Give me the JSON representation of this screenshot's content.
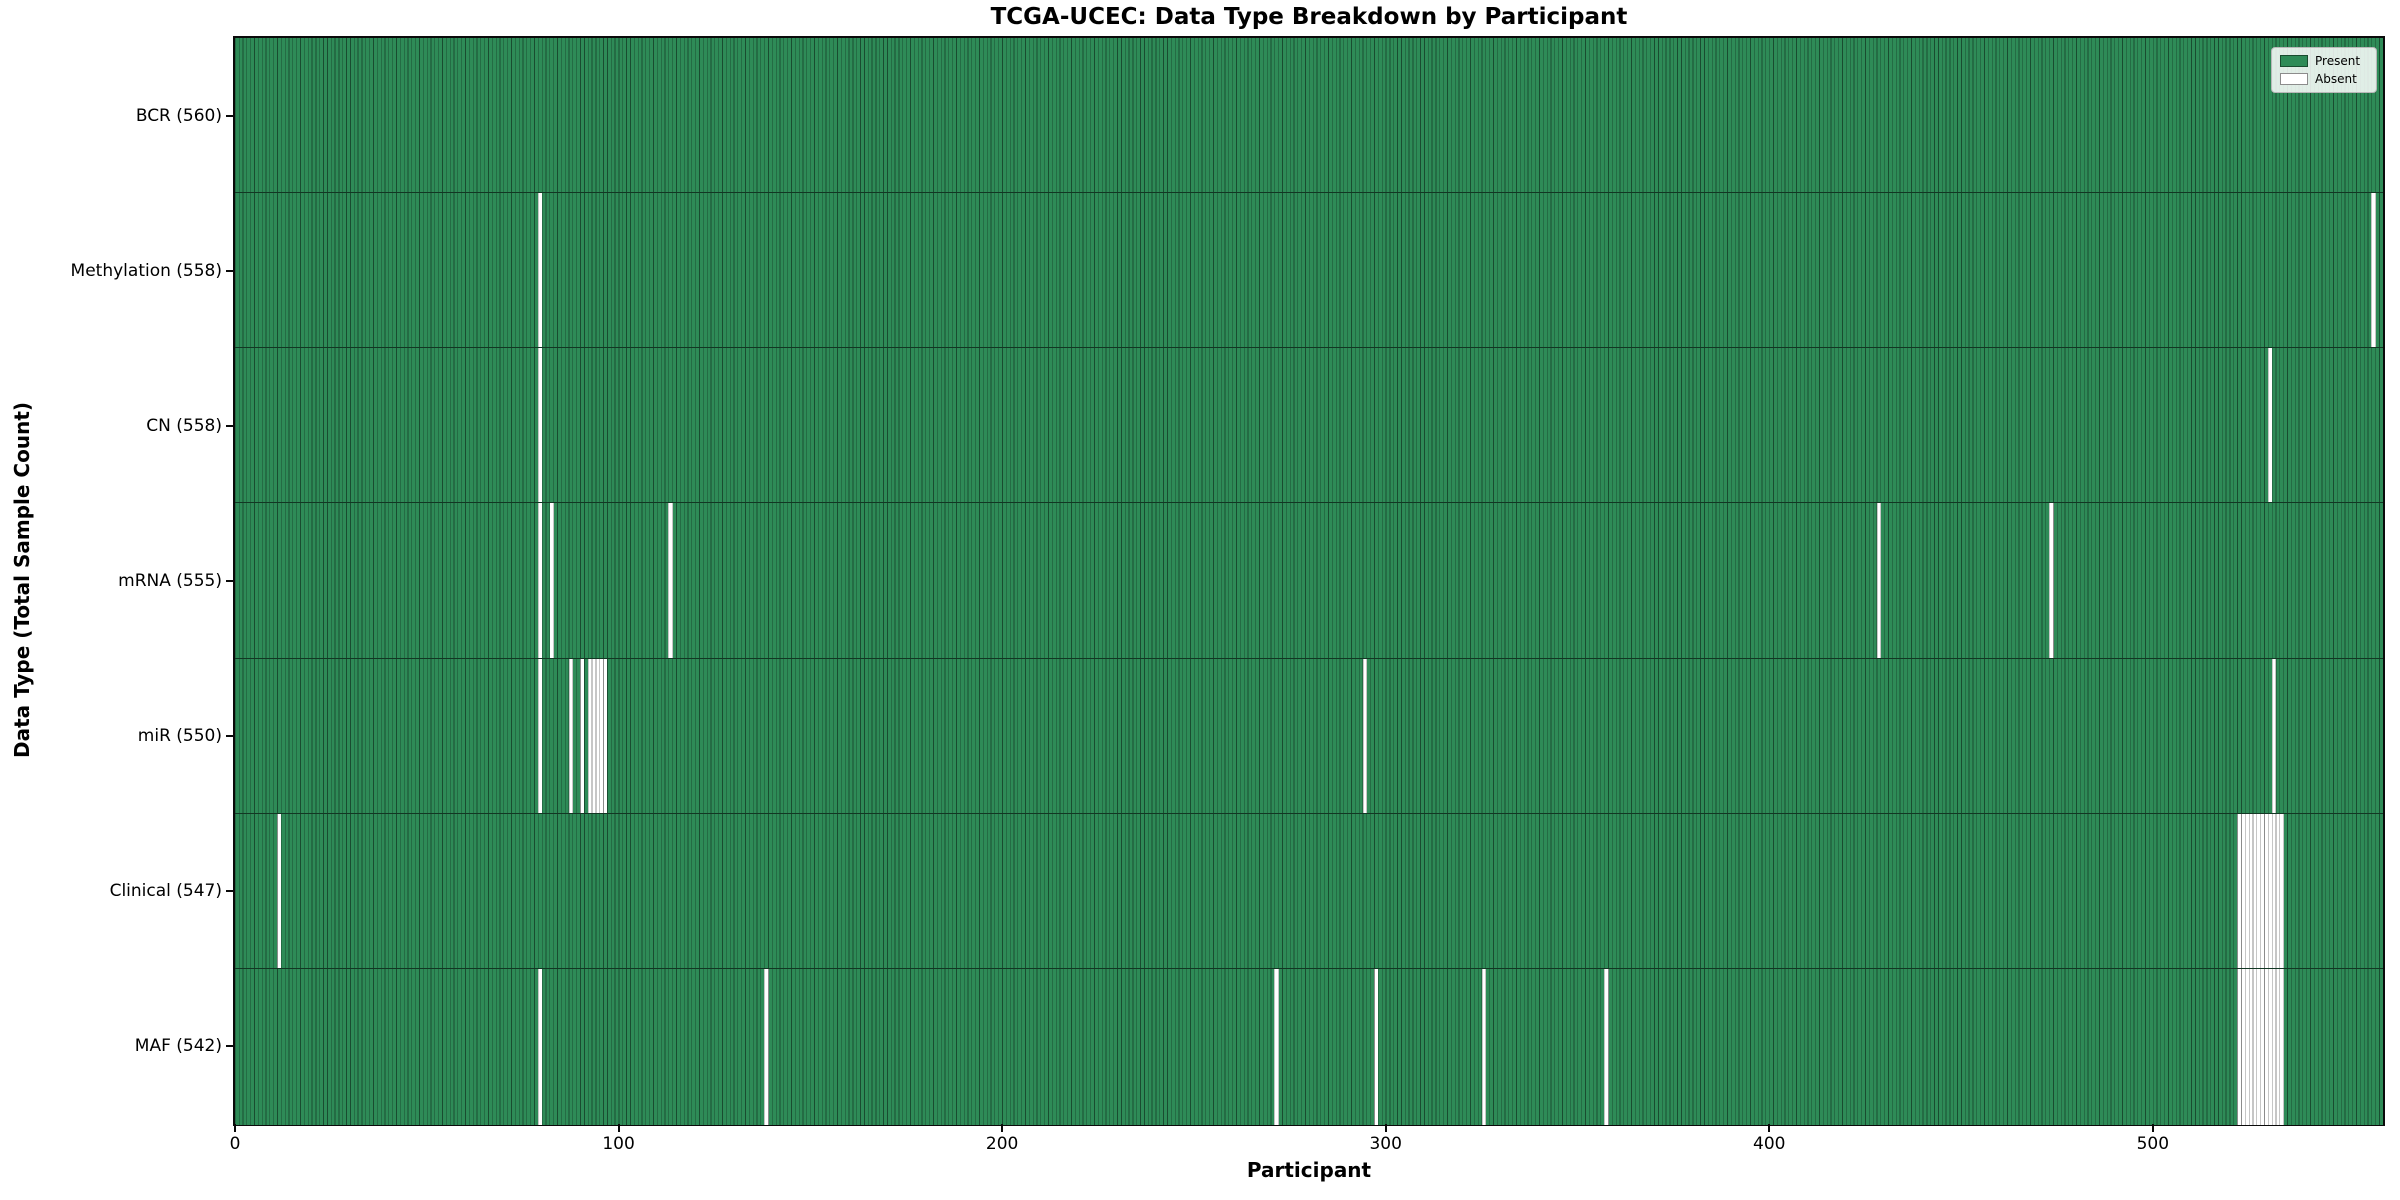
{
  "chart_data": {
    "type": "heatmap",
    "title": "TCGA-UCEC: Data Type Breakdown by Participant",
    "xlabel": "Participant",
    "ylabel": "Data Type (Total Sample Count)",
    "n_participants": 560,
    "xlim": [
      0,
      560
    ],
    "x_ticks": [
      0,
      100,
      200,
      300,
      400,
      500
    ],
    "grid": false,
    "colors": {
      "present": "#2e8b57",
      "absent": "#ffffff",
      "column_edge": "rgba(0,0,0,0.45)",
      "row_divider": "rgba(0,0,0,0.6)",
      "spine": "#0a0a0a"
    },
    "legend": {
      "position": "upper right",
      "entries": [
        {
          "label": "Present",
          "color": "#2e8b57"
        },
        {
          "label": "Absent",
          "color": "#ffffff"
        }
      ]
    },
    "rows": [
      {
        "label": "BCR (560)",
        "data_type": "BCR",
        "total_samples": 560,
        "absent_participants": []
      },
      {
        "label": "Methylation (558)",
        "data_type": "Methylation",
        "total_samples": 558,
        "absent_participants": [
          79,
          557
        ]
      },
      {
        "label": "CN (558)",
        "data_type": "CN",
        "total_samples": 558,
        "absent_participants": [
          79,
          530
        ]
      },
      {
        "label": "mRNA (555)",
        "data_type": "mRNA",
        "total_samples": 555,
        "absent_participants": [
          79,
          82,
          113,
          428,
          473
        ]
      },
      {
        "label": "miR (550)",
        "data_type": "miR",
        "total_samples": 550,
        "absent_participants": [
          79,
          87,
          90,
          92,
          93,
          94,
          95,
          96,
          294,
          531
        ]
      },
      {
        "label": "Clinical (547)",
        "data_type": "Clinical",
        "total_samples": 547,
        "absent_participants": [
          11,
          522,
          523,
          524,
          525,
          526,
          527,
          528,
          529,
          530,
          531,
          532,
          533
        ]
      },
      {
        "label": "MAF (542)",
        "data_type": "MAF",
        "total_samples": 542,
        "absent_participants": [
          79,
          138,
          271,
          297,
          325,
          357,
          522,
          523,
          524,
          525,
          526,
          527,
          528,
          529,
          530,
          531,
          532,
          533
        ]
      }
    ]
  }
}
